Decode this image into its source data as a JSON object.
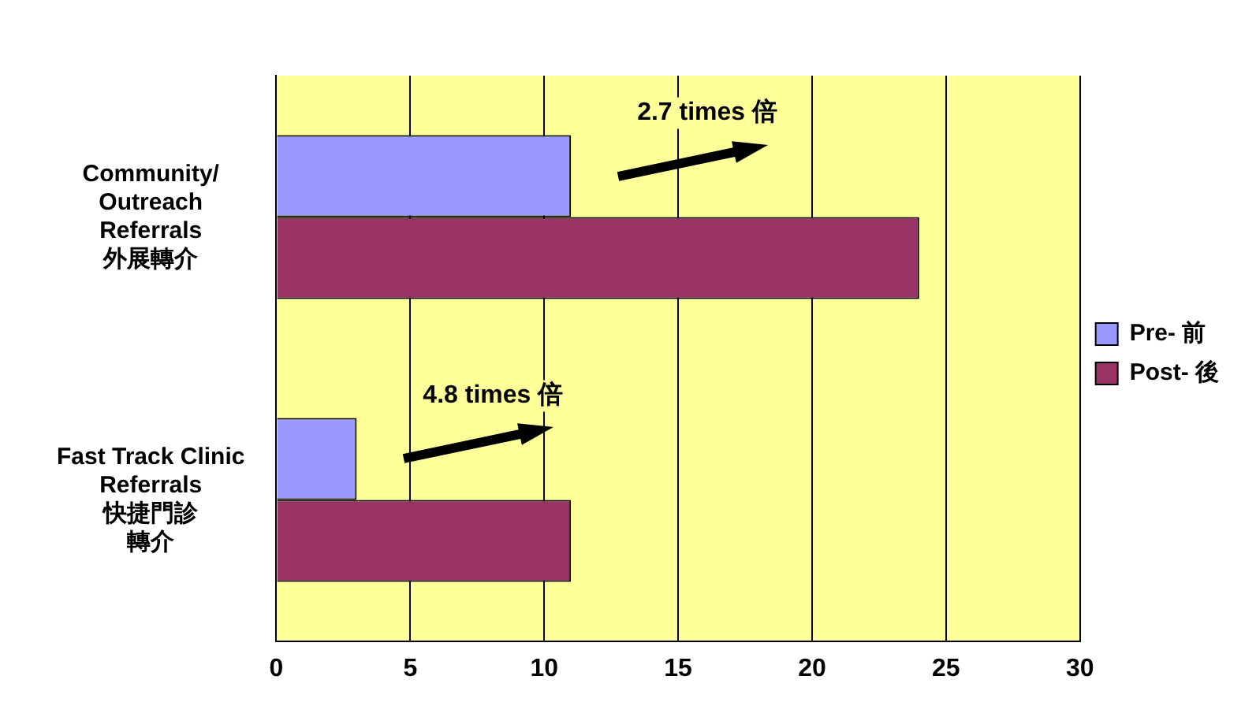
{
  "chart_data": {
    "type": "bar",
    "orientation": "horizontal",
    "categories": [
      "Community/\nOutreach\nReferrals\n外展轉介",
      "Fast Track Clinic\nReferrals\n快捷門診轉介"
    ],
    "series": [
      {
        "name": "Pre- 前",
        "color": "#9999ff",
        "values": [
          11,
          3
        ]
      },
      {
        "name": "Post- 後",
        "color": "#993366",
        "values": [
          24,
          11
        ]
      }
    ],
    "xlim": [
      0,
      30
    ],
    "xticks": [
      0,
      5,
      10,
      15,
      20,
      25,
      30
    ],
    "grid": "x",
    "legend": "right",
    "annotations": [
      "2.7 times 倍",
      "4.8 times 倍"
    ]
  }
}
